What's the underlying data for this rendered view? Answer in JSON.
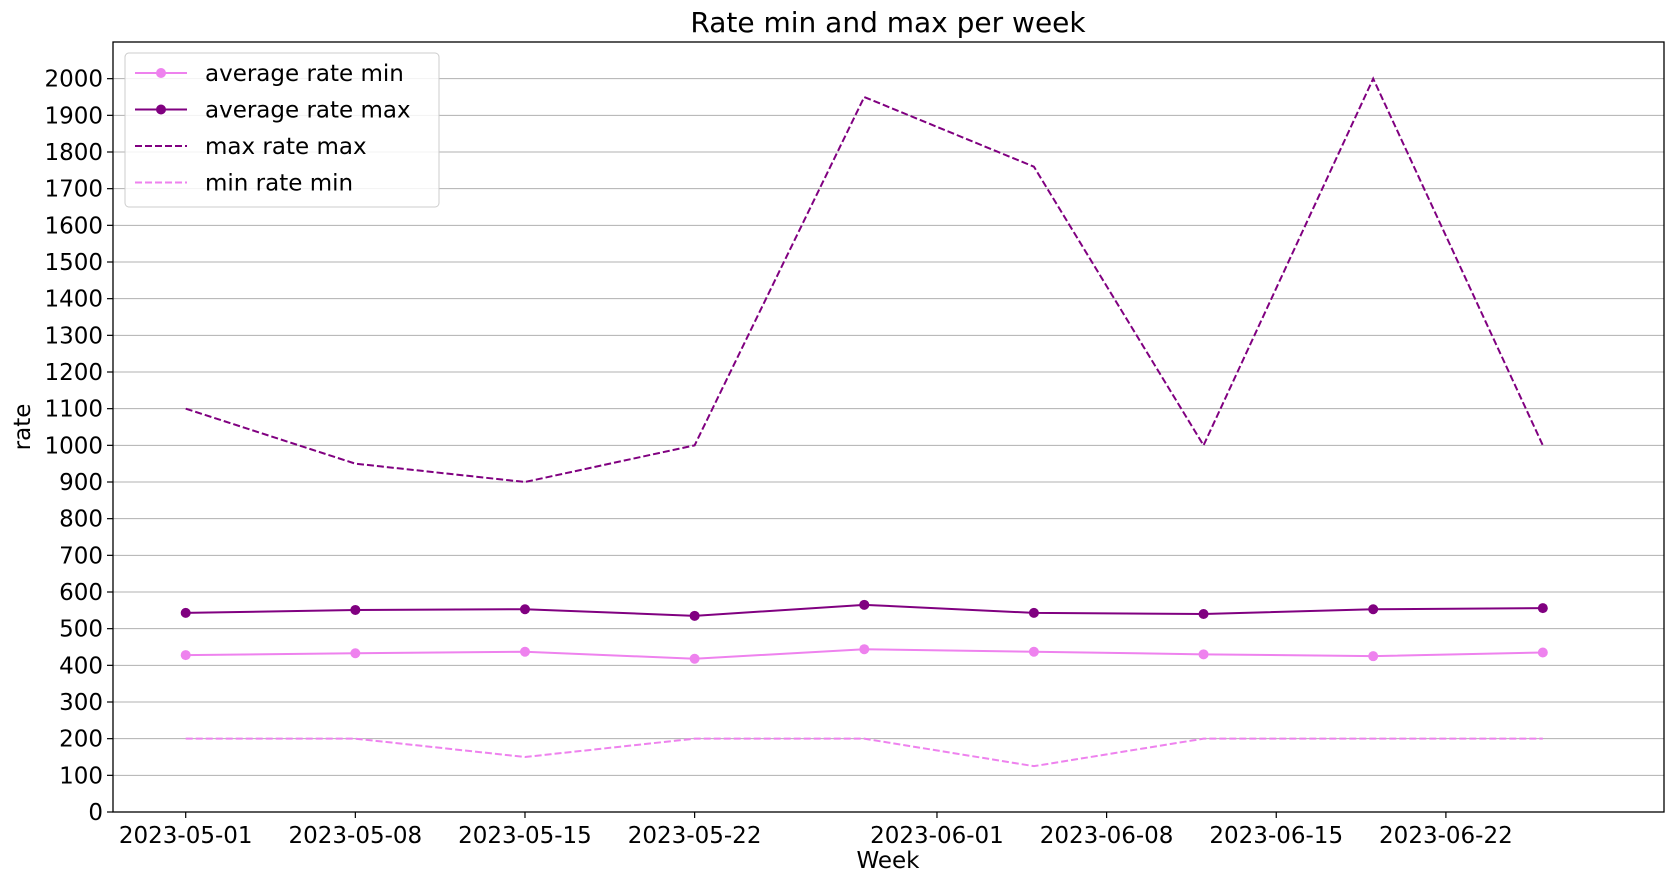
{
  "chart_data": {
    "type": "line",
    "title": "Rate min and max per week",
    "xlabel": "Week",
    "ylabel": "rate",
    "x": [
      "2023-05-01",
      "2023-05-08",
      "2023-05-15",
      "2023-05-22",
      "2023-05-29",
      "2023-06-05",
      "2023-06-12",
      "2023-06-19",
      "2023-06-26"
    ],
    "x_ticks": [
      "2023-05-01",
      "2023-05-08",
      "2023-05-15",
      "2023-05-22",
      "2023-06-01",
      "2023-06-08",
      "2023-06-15",
      "2023-06-22"
    ],
    "x_range": [
      "2023-04-28",
      "2023-07-01"
    ],
    "ylim": [
      0,
      2100
    ],
    "y_ticks": [
      0,
      100,
      200,
      300,
      400,
      500,
      600,
      700,
      800,
      900,
      1000,
      1100,
      1200,
      1300,
      1400,
      1500,
      1600,
      1700,
      1800,
      1900,
      2000
    ],
    "grid": "horizontal",
    "legend_position": "top-left",
    "series": [
      {
        "name": "average rate min",
        "color": "#ee82ee",
        "style": "solid",
        "marker": "circle",
        "values": [
          428,
          433,
          437,
          418,
          444,
          437,
          430,
          425,
          435
        ]
      },
      {
        "name": "average rate max",
        "color": "#800080",
        "style": "solid",
        "marker": "circle",
        "values": [
          543,
          551,
          553,
          535,
          565,
          543,
          540,
          553,
          556
        ]
      },
      {
        "name": "max rate max",
        "color": "#800080",
        "style": "dashed",
        "marker": "none",
        "values": [
          1100,
          950,
          900,
          1000,
          1950,
          1760,
          1000,
          2000,
          1000
        ]
      },
      {
        "name": "min rate min",
        "color": "#ee82ee",
        "style": "dashed",
        "marker": "none",
        "values": [
          200,
          200,
          150,
          200,
          200,
          125,
          200,
          200,
          200
        ]
      }
    ]
  }
}
